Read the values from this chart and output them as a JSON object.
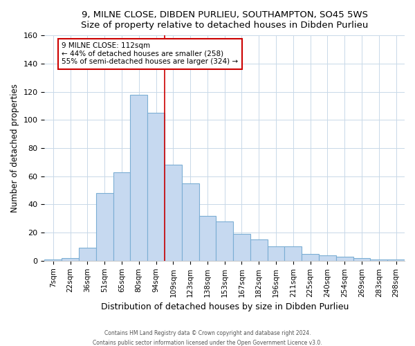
{
  "title": "9, MILNE CLOSE, DIBDEN PURLIEU, SOUTHAMPTON, SO45 5WS",
  "subtitle": "Size of property relative to detached houses in Dibden Purlieu",
  "xlabel": "Distribution of detached houses by size in Dibden Purlieu",
  "ylabel": "Number of detached properties",
  "bar_labels": [
    "7sqm",
    "22sqm",
    "36sqm",
    "51sqm",
    "65sqm",
    "80sqm",
    "94sqm",
    "109sqm",
    "123sqm",
    "138sqm",
    "153sqm",
    "167sqm",
    "182sqm",
    "196sqm",
    "211sqm",
    "225sqm",
    "240sqm",
    "254sqm",
    "269sqm",
    "283sqm",
    "298sqm"
  ],
  "bar_heights": [
    1,
    2,
    9,
    48,
    63,
    118,
    105,
    68,
    55,
    32,
    28,
    19,
    15,
    10,
    10,
    5,
    4,
    3,
    2,
    1,
    1
  ],
  "bar_color": "#c6d9f0",
  "bar_edge_color": "#7baed4",
  "vline_after_index": 6,
  "vline_color": "#cc0000",
  "annotation_title": "9 MILNE CLOSE: 112sqm",
  "annotation_line1": "← 44% of detached houses are smaller (258)",
  "annotation_line2": "55% of semi-detached houses are larger (324) →",
  "annotation_box_color": "#ffffff",
  "annotation_box_edge": "#cc0000",
  "ylim": [
    0,
    160
  ],
  "yticks": [
    0,
    20,
    40,
    60,
    80,
    100,
    120,
    140,
    160
  ],
  "footer1": "Contains HM Land Registry data © Crown copyright and database right 2024.",
  "footer2": "Contains public sector information licensed under the Open Government Licence v3.0."
}
